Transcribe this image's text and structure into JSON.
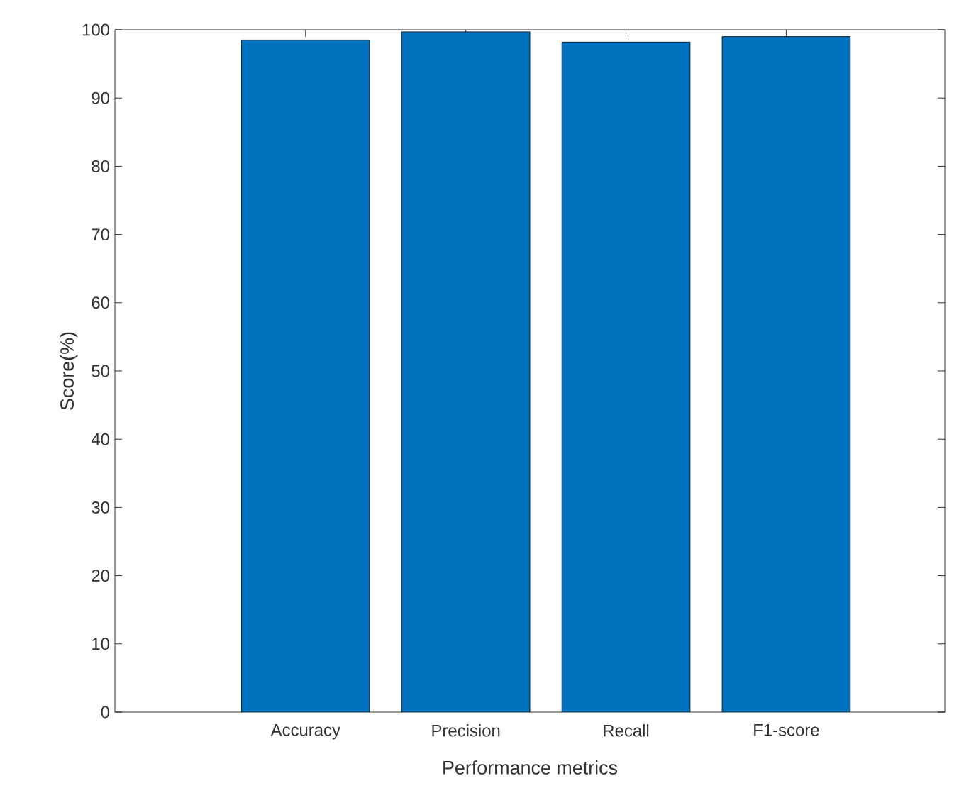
{
  "chart_data": {
    "type": "bar",
    "xlabel": "Performance metrics",
    "ylabel": "Score(%)",
    "categories": [
      "Accuracy",
      "Precision",
      "Recall",
      "F1-score"
    ],
    "values": [
      98.5,
      99.7,
      98.2,
      99.0
    ],
    "color": "#0072bd",
    "ylim": [
      0,
      100
    ],
    "yticks": [
      0,
      10,
      20,
      30,
      40,
      50,
      60,
      70,
      80,
      90,
      100
    ],
    "grid": false
  }
}
